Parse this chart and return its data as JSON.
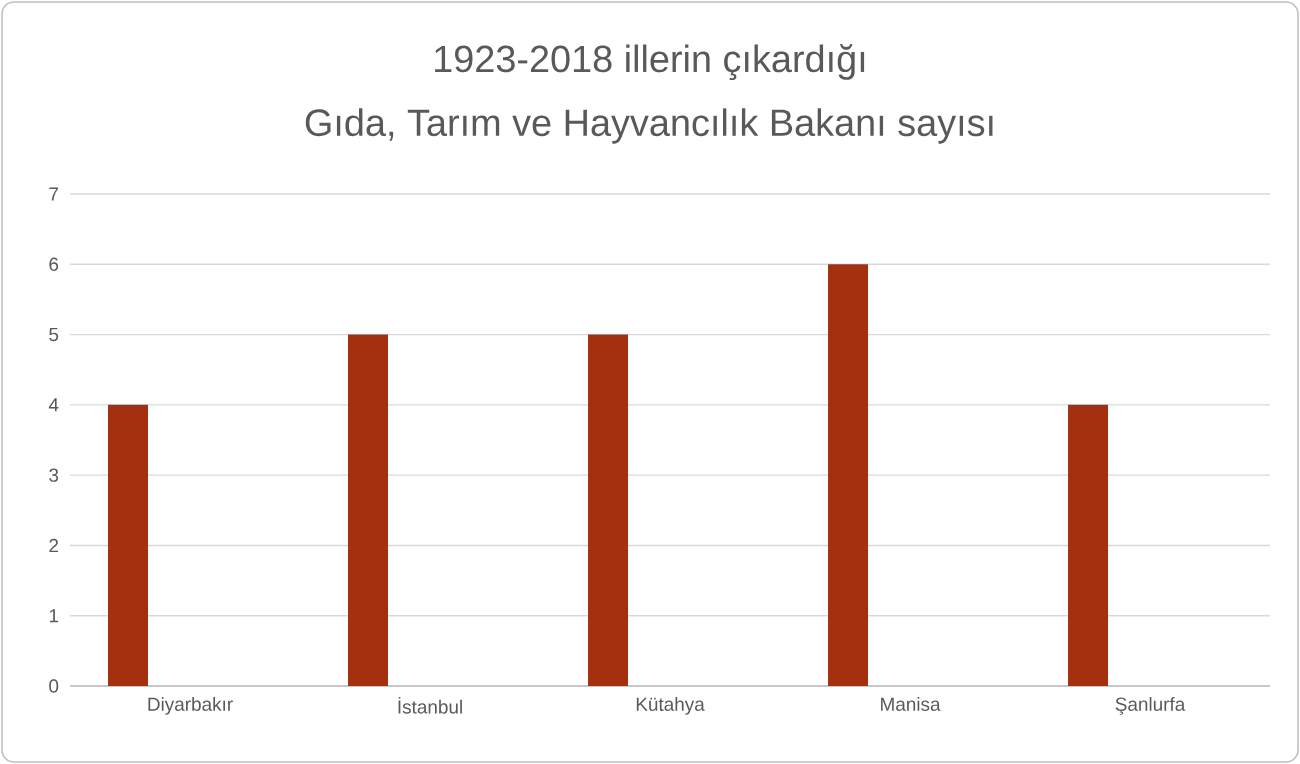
{
  "chart_data": {
    "type": "bar",
    "title": "1923-2018 illerin çıkardığı",
    "subtitle": "Gıda, Tarım ve Hayvancılık Bakanı sayısı",
    "categories": [
      "Diyarbakır",
      "İstanbul",
      "Kütahya",
      "Manisa",
      "Şanlurfa"
    ],
    "values": [
      4,
      5,
      5,
      6,
      4
    ],
    "color": "#a5300f",
    "ylim": [
      0,
      7
    ],
    "yticks": [
      0,
      1,
      2,
      3,
      4,
      5,
      6,
      7
    ],
    "grid": "y"
  }
}
